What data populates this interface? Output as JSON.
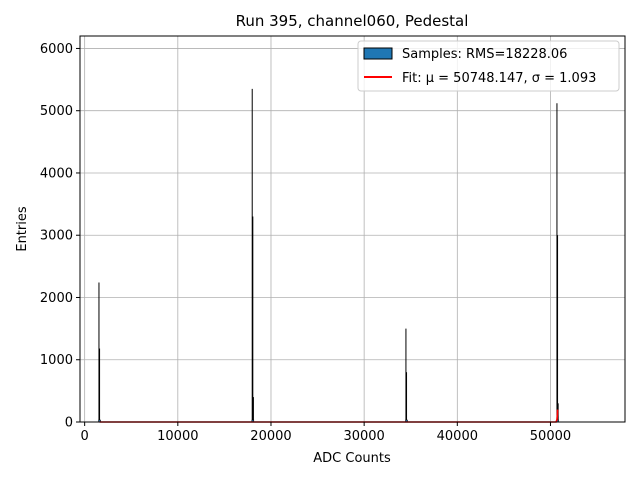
{
  "chart_data": {
    "type": "bar",
    "title": "Run 395, channel060, Pedestal",
    "xlabel": "ADC Counts",
    "ylabel": "Entries",
    "xlim": [
      -500,
      58000
    ],
    "ylim": [
      0,
      6200
    ],
    "xticks": [
      0,
      10000,
      20000,
      30000,
      40000,
      50000
    ],
    "yticks": [
      0,
      1000,
      2000,
      3000,
      4000,
      5000,
      6000
    ],
    "grid": true,
    "legend_position": "top-right",
    "series": [
      {
        "name": "Samples: RMS=18228.06",
        "kind": "histogram",
        "fill": "#1f77b4",
        "edge": "#000000",
        "bins": [
          {
            "x": 1600,
            "values": [
              2240,
              1180,
              0
            ]
          },
          {
            "x": 18050,
            "values": [
              5350,
              3300,
              400
            ]
          },
          {
            "x": 34550,
            "values": [
              1500,
              800,
              0
            ]
          },
          {
            "x": 50760,
            "values": [
              5120,
              3000,
              300
            ]
          }
        ]
      },
      {
        "name": "Fit: μ = 50748.147, σ = 1.093",
        "kind": "line",
        "color": "#ff0000",
        "x": [
          1600,
          50600,
          50700,
          50748,
          50760
        ],
        "y": [
          0,
          0,
          40,
          120,
          200
        ]
      }
    ]
  }
}
